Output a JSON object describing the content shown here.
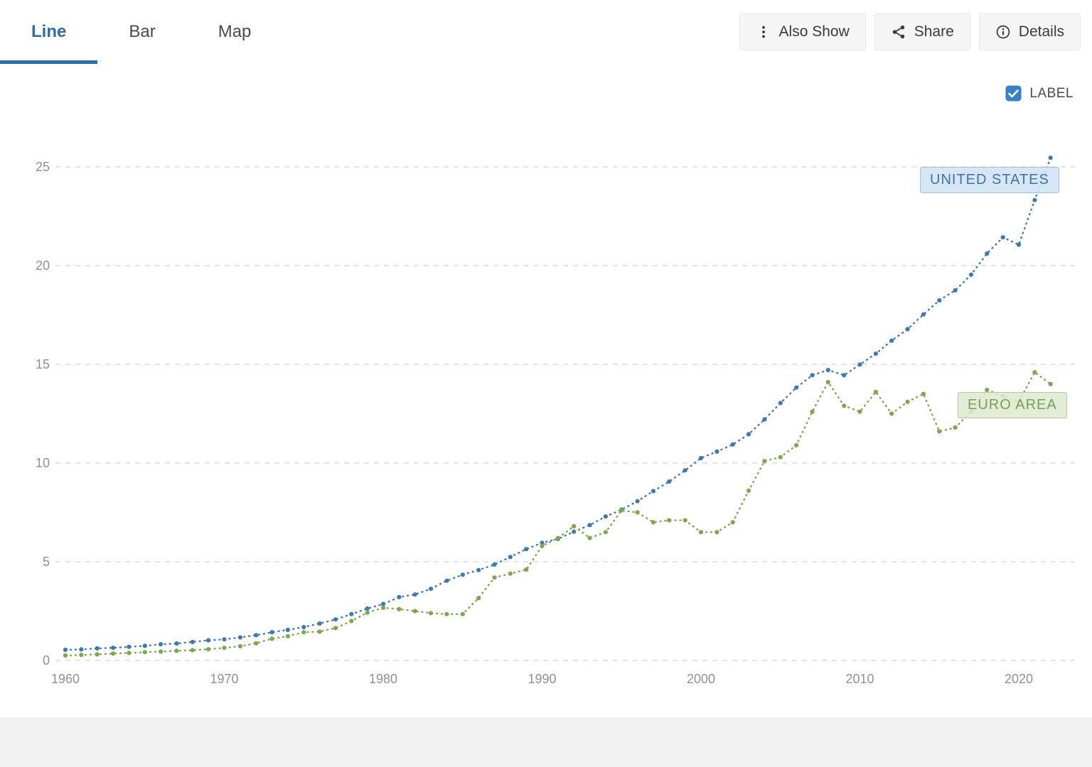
{
  "header": {
    "tabs": [
      {
        "label": "Line",
        "active": true
      },
      {
        "label": "Bar",
        "active": false
      },
      {
        "label": "Map",
        "active": false
      }
    ],
    "buttons": [
      {
        "label": "Also Show",
        "icon": "kebab-menu-icon"
      },
      {
        "label": "Share",
        "icon": "share-icon"
      },
      {
        "label": "Details",
        "icon": "info-icon"
      }
    ]
  },
  "chart": {
    "label_checkbox": {
      "text": "LABEL",
      "checked": true
    },
    "us_label": "UNITED STATES",
    "euro_label": "EURO AREA"
  },
  "colors": {
    "accent_blue": "#2e6da4",
    "us_line": "#4179ab",
    "euro_line": "#7fa650",
    "grid": "#dcdcdc",
    "tick_text": "#909090",
    "checkbox_blue": "#3a7fc8"
  },
  "chart_data": {
    "type": "line",
    "x": [
      1960,
      1961,
      1962,
      1963,
      1964,
      1965,
      1966,
      1967,
      1968,
      1969,
      1970,
      1971,
      1972,
      1973,
      1974,
      1975,
      1976,
      1977,
      1978,
      1979,
      1980,
      1981,
      1982,
      1983,
      1984,
      1985,
      1986,
      1987,
      1988,
      1989,
      1990,
      1991,
      1992,
      1993,
      1994,
      1995,
      1996,
      1997,
      1998,
      1999,
      2000,
      2001,
      2002,
      2003,
      2004,
      2005,
      2006,
      2007,
      2008,
      2009,
      2010,
      2011,
      2012,
      2013,
      2014,
      2015,
      2016,
      2017,
      2018,
      2019,
      2020,
      2021,
      2022
    ],
    "series": [
      {
        "name": "United States",
        "label": "UNITED STATES",
        "color": "#4179ab",
        "values": [
          0.54,
          0.56,
          0.61,
          0.64,
          0.69,
          0.74,
          0.82,
          0.86,
          0.94,
          1.02,
          1.07,
          1.17,
          1.28,
          1.43,
          1.55,
          1.69,
          1.87,
          2.08,
          2.35,
          2.63,
          2.86,
          3.21,
          3.34,
          3.63,
          4.04,
          4.34,
          4.58,
          4.86,
          5.24,
          5.64,
          5.96,
          6.16,
          6.52,
          6.86,
          7.29,
          7.64,
          8.07,
          8.58,
          9.06,
          9.63,
          10.25,
          10.58,
          10.94,
          11.46,
          12.21,
          13.04,
          13.82,
          14.45,
          14.71,
          14.45,
          14.99,
          15.54,
          16.2,
          16.78,
          17.53,
          18.24,
          18.75,
          19.54,
          20.61,
          21.43,
          21.06,
          23.32,
          25.46
        ]
      },
      {
        "name": "Euro Area",
        "label": "EURO AREA",
        "color": "#7fa650",
        "values": [
          0.25,
          0.28,
          0.31,
          0.35,
          0.38,
          0.42,
          0.45,
          0.49,
          0.52,
          0.57,
          0.64,
          0.72,
          0.87,
          1.1,
          1.23,
          1.43,
          1.46,
          1.64,
          2.0,
          2.42,
          2.67,
          2.6,
          2.5,
          2.4,
          2.35,
          2.35,
          3.16,
          4.2,
          4.4,
          4.6,
          5.8,
          6.2,
          6.8,
          6.2,
          6.5,
          7.6,
          7.5,
          7.0,
          7.1,
          7.1,
          6.5,
          6.5,
          7.0,
          8.6,
          10.1,
          10.3,
          10.9,
          12.6,
          14.1,
          12.9,
          12.6,
          13.6,
          12.5,
          13.1,
          13.5,
          11.6,
          11.8,
          12.6,
          13.7,
          13.4,
          13.1,
          14.6,
          14.0
        ]
      }
    ],
    "ylim": [
      0,
      27.2
    ],
    "yticks": [
      0,
      5,
      10,
      15,
      20,
      25
    ],
    "xticks": [
      1960,
      1970,
      1980,
      1990,
      2000,
      2010,
      2020
    ],
    "grid": true,
    "legend": "inline-labels"
  }
}
